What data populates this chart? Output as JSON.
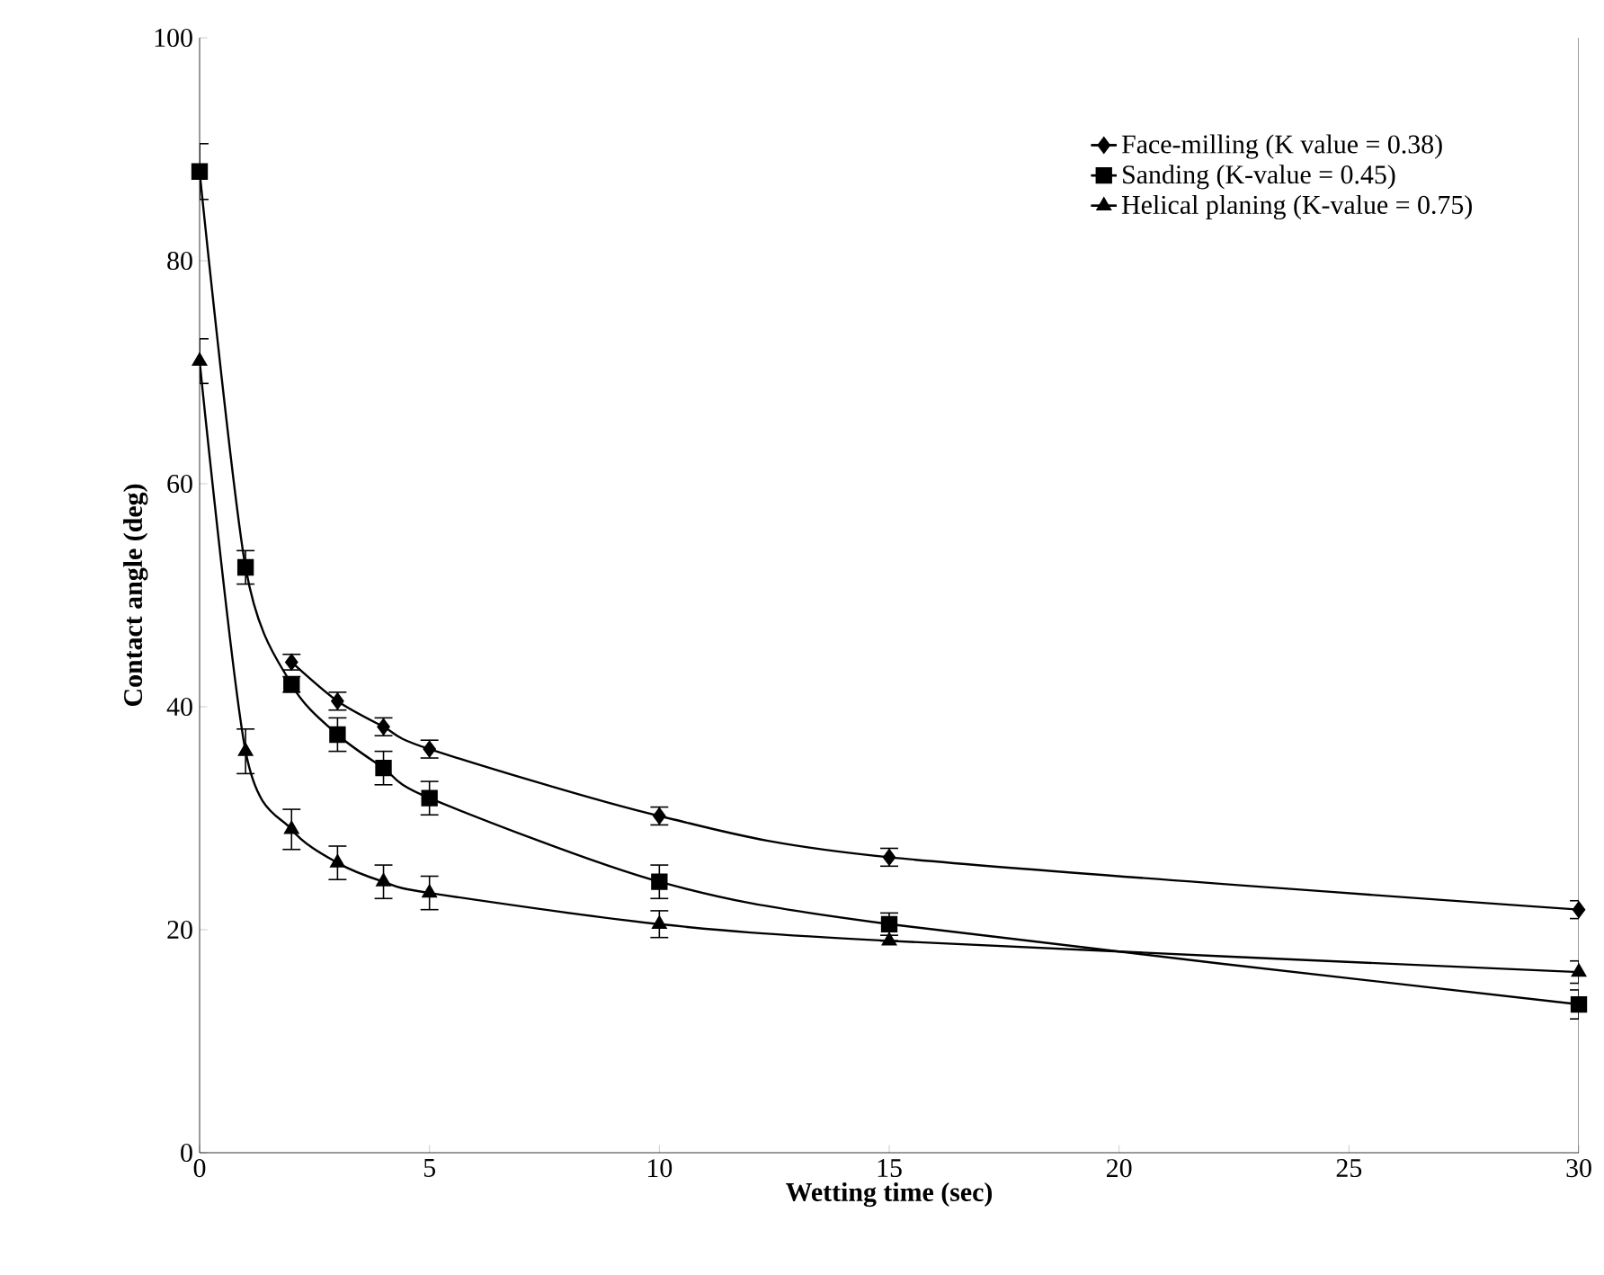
{
  "chart_data": {
    "type": "line",
    "xlabel": "Wetting time (sec)",
    "ylabel": "Contact angle (deg)",
    "x": [
      0,
      1,
      2,
      3,
      4,
      5,
      10,
      15,
      30
    ],
    "series": [
      {
        "name": "Face-milling (K value = 0.38)",
        "color": "#000000",
        "marker": "diamond",
        "values": [
          null,
          null,
          44,
          40.5,
          38.2,
          36.2,
          30.2,
          26.5,
          21.8
        ],
        "errors": [
          null,
          null,
          0.7,
          0.8,
          0.8,
          0.8,
          0.8,
          0.8,
          0.8
        ]
      },
      {
        "name": "Sanding (K-value = 0.45)",
        "color": "#000000",
        "marker": "square",
        "values": [
          88,
          52.5,
          42,
          37.5,
          34.5,
          31.8,
          24.3,
          20.5,
          13.3
        ],
        "errors": [
          2.5,
          1.5,
          0.7,
          1.5,
          1.5,
          1.5,
          1.5,
          1,
          1.3
        ]
      },
      {
        "name": "Helical planing (K-value = 0.75)",
        "color": "#000000",
        "marker": "triangle",
        "values": [
          71,
          36,
          29,
          26,
          24.3,
          23.3,
          20.5,
          19,
          16.2
        ],
        "errors": [
          2,
          2,
          1.8,
          1.5,
          1.5,
          1.5,
          1.2,
          null,
          1
        ]
      }
    ],
    "xlim": [
      0,
      30
    ],
    "ylim": [
      0,
      100
    ],
    "xticks": [
      0,
      5,
      10,
      15,
      20,
      25,
      30
    ],
    "yticks": [
      0,
      20,
      40,
      60,
      80,
      100
    ],
    "legend": "top right",
    "line_style": "solid"
  }
}
